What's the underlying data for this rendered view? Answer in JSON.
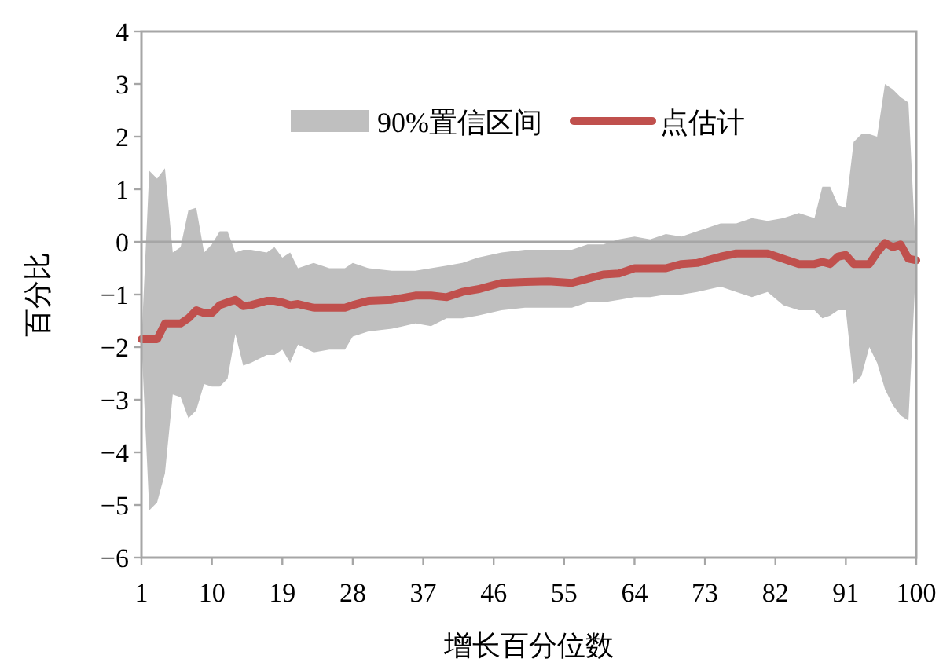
{
  "chart_data": {
    "type": "line",
    "xlabel": "增长百分位数",
    "ylabel": "百分比",
    "annotations": [
      "90%置信区间"
    ],
    "x": [
      1,
      2,
      3,
      4,
      5,
      6,
      7,
      8,
      9,
      10,
      11,
      12,
      13,
      14,
      15,
      17,
      18,
      19,
      20,
      21,
      23,
      25,
      27,
      28,
      30,
      33,
      36,
      38,
      40,
      42,
      44,
      47,
      50,
      53,
      56,
      58,
      60,
      62,
      64,
      66,
      68,
      70,
      72,
      75,
      77,
      79,
      81,
      83,
      85,
      87,
      88,
      89,
      90,
      91,
      92,
      93,
      94,
      95,
      96,
      97,
      98,
      99,
      100
    ],
    "series": [
      {
        "name": "点估计",
        "type": "line",
        "color": "#c0504d",
        "values": [
          -1.85,
          -1.85,
          -1.85,
          -1.55,
          -1.55,
          -1.55,
          -1.45,
          -1.3,
          -1.35,
          -1.35,
          -1.2,
          -1.15,
          -1.1,
          -1.22,
          -1.2,
          -1.12,
          -1.12,
          -1.15,
          -1.2,
          -1.18,
          -1.25,
          -1.25,
          -1.25,
          -1.2,
          -1.12,
          -1.1,
          -1.02,
          -1.02,
          -1.05,
          -0.95,
          -0.9,
          -0.78,
          -0.76,
          -0.75,
          -0.78,
          -0.7,
          -0.62,
          -0.6,
          -0.5,
          -0.5,
          -0.5,
          -0.42,
          -0.4,
          -0.28,
          -0.22,
          -0.22,
          -0.22,
          -0.32,
          -0.42,
          -0.42,
          -0.38,
          -0.42,
          -0.28,
          -0.25,
          -0.42,
          -0.42,
          -0.42,
          -0.2,
          -0.02,
          -0.1,
          -0.05,
          -0.32,
          -0.35
        ],
        "lower": [
          -1.9,
          -5.1,
          -4.95,
          -4.4,
          -2.9,
          -2.95,
          -3.35,
          -3.2,
          -2.7,
          -2.75,
          -2.75,
          -2.6,
          -1.75,
          -2.35,
          -2.3,
          -2.15,
          -2.15,
          -2.05,
          -2.3,
          -1.95,
          -2.1,
          -2.05,
          -2.05,
          -1.8,
          -1.7,
          -1.65,
          -1.55,
          -1.6,
          -1.45,
          -1.45,
          -1.4,
          -1.3,
          -1.25,
          -1.25,
          -1.25,
          -1.15,
          -1.15,
          -1.1,
          -1.05,
          -1.05,
          -1.0,
          -1.0,
          -0.95,
          -0.85,
          -0.95,
          -1.05,
          -0.95,
          -1.2,
          -1.3,
          -1.3,
          -1.45,
          -1.4,
          -1.3,
          -1.3,
          -2.7,
          -2.55,
          -2.0,
          -2.3,
          -2.8,
          -3.1,
          -3.3,
          -3.4,
          -0.35
        ],
        "upper": [
          -1.9,
          1.35,
          1.2,
          1.4,
          -0.2,
          -0.1,
          0.6,
          0.65,
          -0.2,
          -0.05,
          0.2,
          0.2,
          -0.2,
          -0.15,
          -0.15,
          -0.2,
          -0.1,
          -0.3,
          -0.2,
          -0.5,
          -0.4,
          -0.5,
          -0.5,
          -0.4,
          -0.5,
          -0.55,
          -0.55,
          -0.5,
          -0.45,
          -0.4,
          -0.3,
          -0.2,
          -0.15,
          -0.15,
          -0.15,
          -0.05,
          -0.05,
          0.05,
          0.1,
          0.05,
          0.15,
          0.1,
          0.2,
          0.35,
          0.35,
          0.45,
          0.4,
          0.45,
          0.55,
          0.45,
          1.05,
          1.05,
          0.7,
          0.65,
          1.9,
          2.05,
          2.05,
          2.0,
          3.0,
          2.9,
          2.75,
          2.65,
          -0.35
        ]
      }
    ],
    "xlim": [
      1,
      100
    ],
    "xticks": [
      1,
      10,
      19,
      28,
      37,
      46,
      55,
      64,
      73,
      82,
      91,
      100
    ],
    "ylim": [
      -6,
      4
    ],
    "yticks": [
      -6,
      -5,
      -4,
      -3,
      -2,
      -1,
      0,
      1,
      2,
      3,
      4
    ],
    "ref_lines": [
      {
        "axis": "y",
        "value": 0,
        "label": null,
        "color": "#a6a6a6"
      }
    ],
    "grid": false,
    "legend": "top",
    "marker": "none",
    "line_style": "solid"
  }
}
